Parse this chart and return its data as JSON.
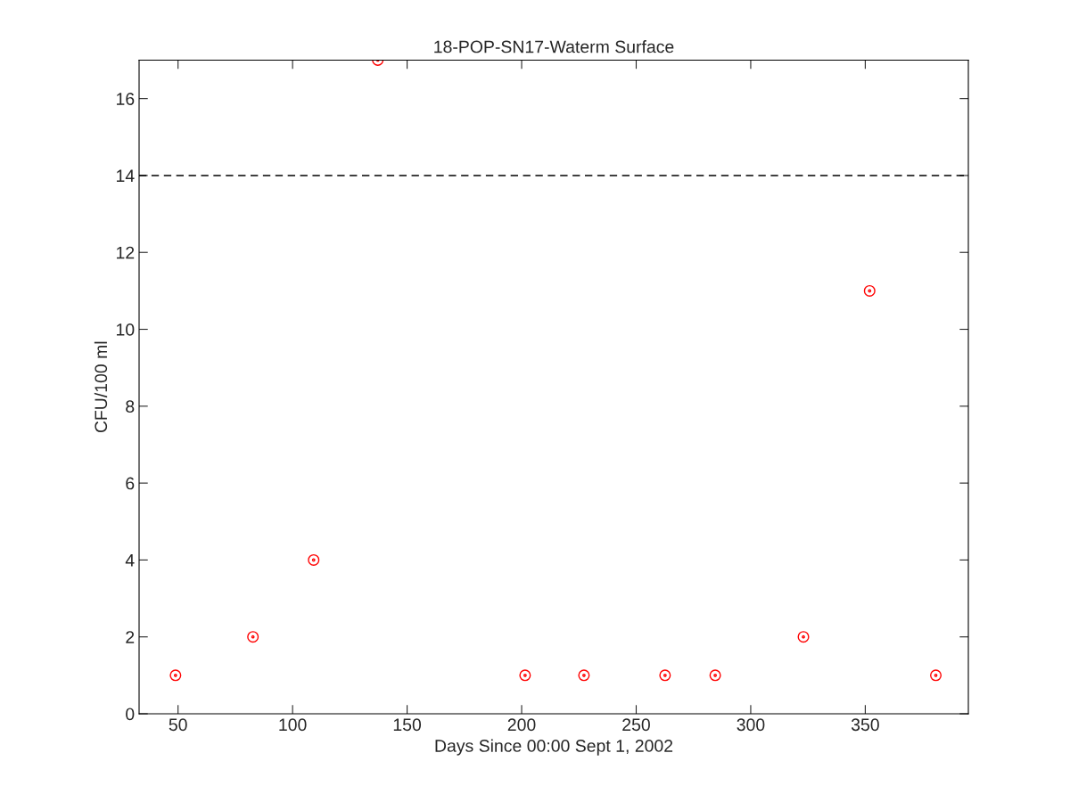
{
  "chart_data": {
    "type": "scatter",
    "title": "18-POP-SN17-Waterm Surface",
    "xlabel": "Days Since 00:00 Sept 1, 2002",
    "ylabel": "CFU/100 ml",
    "x": [
      48.9,
      82.7,
      109.2,
      137.2,
      201.5,
      227.2,
      262.6,
      284.5,
      323.0,
      351.9,
      380.8
    ],
    "series": [
      {
        "color": "#ff0000",
        "values": [
          1,
          2,
          4,
          17,
          1,
          1,
          1,
          1,
          2,
          11,
          1
        ]
      }
    ],
    "xlim": [
      33,
      395
    ],
    "xticks": [
      50,
      100,
      150,
      200,
      250,
      300,
      350
    ],
    "ylim": [
      0,
      17
    ],
    "yticks": [
      0,
      2,
      4,
      6,
      8,
      10,
      12,
      14,
      16
    ],
    "ref_lines": [
      {
        "axis": "y",
        "value": 14,
        "color": "#000000",
        "line_style": "dashed"
      }
    ],
    "marker": "circle",
    "grid": false,
    "legend": false
  }
}
